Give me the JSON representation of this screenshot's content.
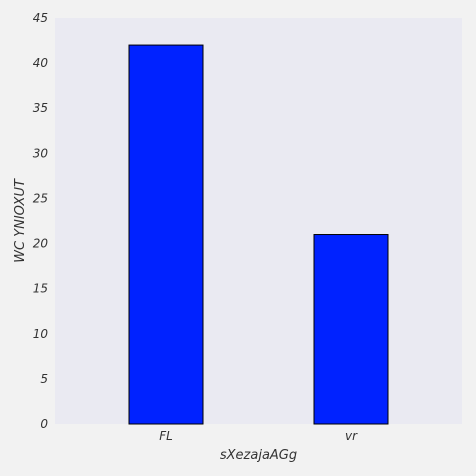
{
  "colors": {
    "page_background": "#f2f2f2",
    "plot_background": "#eaeaf2",
    "bar_fill": "#0022ff",
    "bar_edge": "#000000",
    "text": "#333333"
  },
  "chart_data": {
    "type": "bar",
    "title": "",
    "xlabel": "sXezajaAGg",
    "ylabel": "WC YNIOXUT",
    "categories": [
      "FL",
      "vr"
    ],
    "values": [
      42,
      21
    ],
    "ylim": [
      0,
      45
    ],
    "yticks": [
      0,
      5,
      10,
      15,
      20,
      25,
      30,
      35,
      40,
      45
    ],
    "grid": false,
    "legend": "none"
  }
}
